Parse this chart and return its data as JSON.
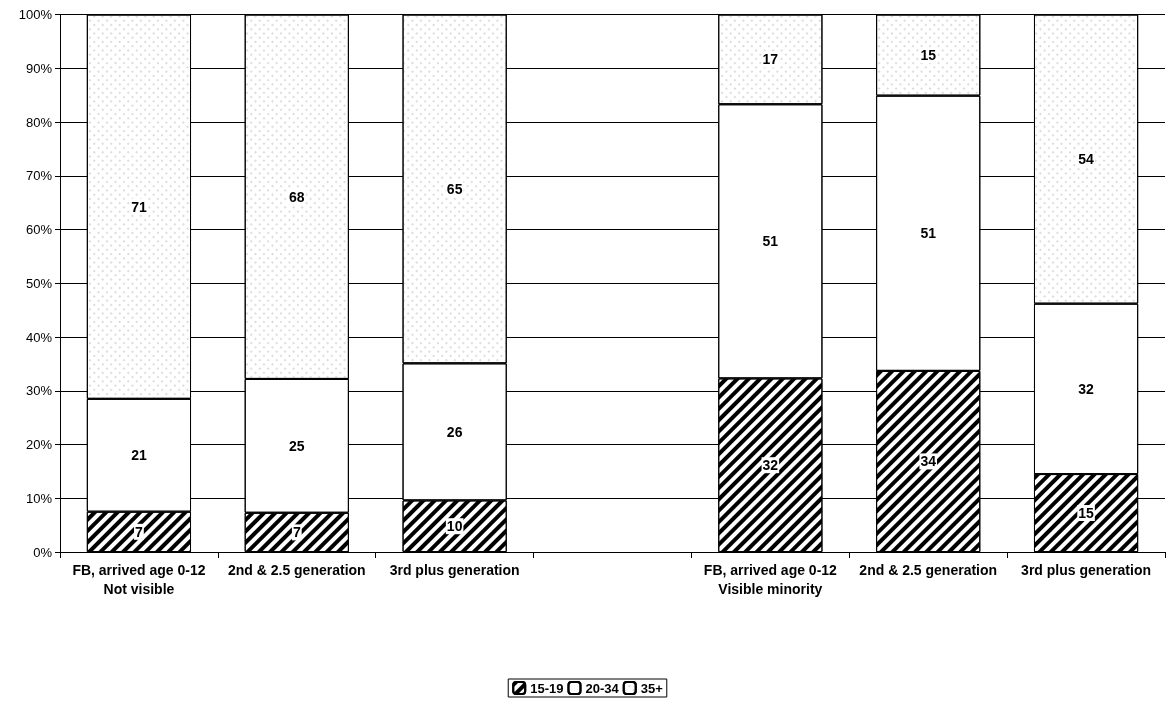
{
  "chart_data": {
    "type": "bar",
    "stacked": true,
    "categories": [
      "FB, arrived age 0-12\nNot visible",
      "2nd & 2.5 generation",
      "3rd plus generation",
      null,
      "FB, arrived age 0-12\nVisible minority",
      "2nd & 2.5 generation",
      "3rd plus generation"
    ],
    "series": [
      {
        "name": "15-19",
        "color": "#ffffff",
        "values": [
          7.5,
          7.3,
          9.6,
          null,
          32.3,
          33.7,
          14.5
        ],
        "value_labels": [
          "7",
          "7",
          "10",
          null,
          "32",
          "34",
          "15"
        ]
      },
      {
        "name": "20-34",
        "color": "#ffffff",
        "values": [
          21,
          24.9,
          25.5,
          null,
          51,
          51.2,
          31.7
        ],
        "value_labels": [
          "21",
          "25",
          "26",
          null,
          "51",
          "51",
          "32"
        ]
      },
      {
        "name": "35+",
        "color": "#ffffff",
        "values": [
          71.5,
          67.8,
          64.9,
          null,
          16.7,
          15.1,
          53.8
        ],
        "value_labels": [
          "71",
          "68",
          "65",
          null,
          "17",
          "15",
          "54"
        ]
      }
    ],
    "ylim": [
      0,
      100
    ],
    "yticks": [
      {
        "value": 0,
        "label": "0%"
      },
      {
        "value": 10,
        "label": "10%"
      },
      {
        "value": 20,
        "label": "20%"
      },
      {
        "value": 30,
        "label": "30%"
      },
      {
        "value": 40,
        "label": "40%"
      },
      {
        "value": 50,
        "label": "50%"
      },
      {
        "value": 60,
        "label": "60%"
      },
      {
        "value": 70,
        "label": "70%"
      },
      {
        "value": 80,
        "label": "80%"
      },
      {
        "value": 90,
        "label": "90%"
      },
      {
        "value": 100,
        "label": "100%"
      }
    ],
    "grid": "y",
    "legend": "bottom"
  }
}
